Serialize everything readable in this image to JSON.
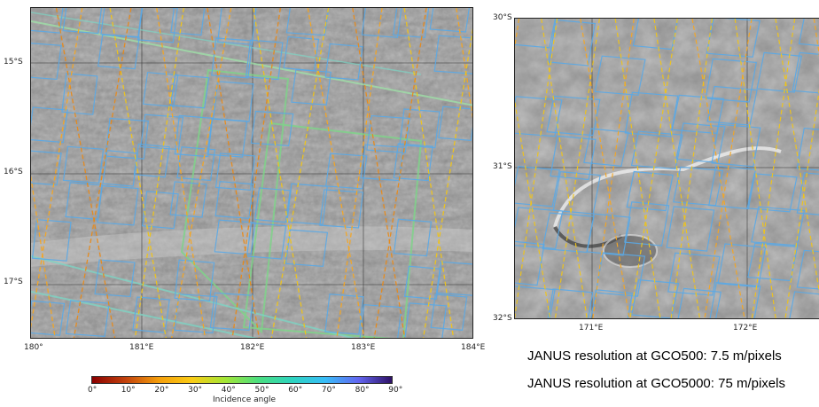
{
  "left_map": {
    "lat_labels": [
      "15°S",
      "16°S",
      "17°S"
    ],
    "lon_labels": [
      "180°",
      "181°E",
      "182°E",
      "183°E",
      "184°E"
    ]
  },
  "right_map": {
    "lat_labels": [
      "30°S",
      "31°S",
      "32°S"
    ],
    "lon_labels": [
      "171°E",
      "172°E"
    ]
  },
  "colorbar": {
    "title": "Incidence angle",
    "ticks": [
      "0°",
      "10°",
      "20°",
      "30°",
      "40°",
      "50°",
      "60°",
      "70°",
      "80°",
      "90°"
    ],
    "colors": [
      "#8b0000",
      "#c2410c",
      "#f59e0b",
      "#facc15",
      "#a3e635",
      "#4ade80",
      "#2dd4bf",
      "#38bdf8",
      "#6366f1",
      "#2e1065"
    ]
  },
  "captions": {
    "line1": "JANUS resolution at GCO500: 7.5 m/pixels",
    "line2": "JANUS resolution at GCO5000: 75 m/pixels"
  },
  "footprint_colors": {
    "high_res": "#5aa9e6",
    "track": "#f5a623",
    "wide": "#7fd28a"
  }
}
